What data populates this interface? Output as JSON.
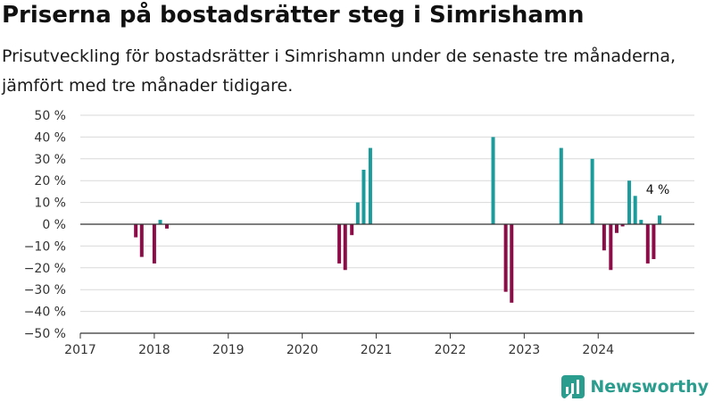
{
  "title": "Priserna på bostadsrätter steg i Simrishamn",
  "subtitle": "Prisutveckling för bostadsrätter i Simrishamn under de senaste tre månaderna, jämfört med tre månader tidigare.",
  "brand": {
    "name": "Newsworthy",
    "icon": "newsworthy-logo-icon",
    "color": "#2a9d8f"
  },
  "colors": {
    "positive": "#1a9c9c",
    "negative": "#8c0c48",
    "grid": "#d9d9d9",
    "zero": "#333333"
  },
  "chart_data": {
    "type": "bar",
    "ylim": [
      -50,
      50
    ],
    "yticks": [
      50,
      40,
      30,
      20,
      10,
      0,
      -10,
      -20,
      -30,
      -40,
      -50
    ],
    "ytick_labels": [
      "50 %",
      "40 %",
      "30 %",
      "20 %",
      "10 %",
      "0 %",
      "−10 %",
      "−20 %",
      "−30 %",
      "−40 %",
      "−50 %"
    ],
    "xlim": [
      2017,
      2025.3
    ],
    "xticks": [
      2017,
      2018,
      2019,
      2020,
      2021,
      2022,
      2023,
      2024
    ],
    "xtick_labels": [
      "2017",
      "2018",
      "2019",
      "2020",
      "2021",
      "2022",
      "2023",
      "2024"
    ],
    "grid": true,
    "series": [
      {
        "x": [
          2017.75,
          2017.83,
          2018.0,
          2018.08,
          2018.17,
          2020.5,
          2020.58,
          2020.67,
          2020.75,
          2020.83,
          2020.92,
          2022.58,
          2022.75,
          2022.83,
          2023.5,
          2023.92,
          2024.08,
          2024.17,
          2024.25,
          2024.33,
          2024.42,
          2024.5,
          2024.58,
          2024.67,
          2024.75,
          2024.83
        ],
        "values": [
          -6,
          -15,
          -18,
          2,
          -2,
          -18,
          -21,
          -5,
          10,
          25,
          35,
          40,
          -31,
          -36,
          35,
          30,
          -12,
          -21,
          -4,
          -1,
          20,
          13,
          2,
          -18,
          -16,
          4
        ]
      }
    ],
    "annotation": {
      "text": "4 %",
      "x": 2024.83,
      "y": 4
    }
  }
}
